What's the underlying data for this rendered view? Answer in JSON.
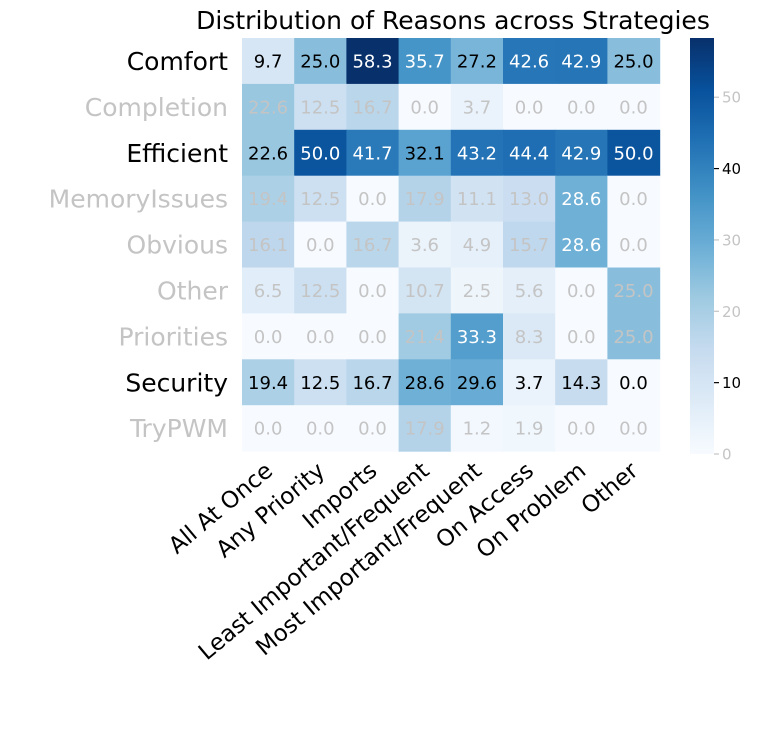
{
  "chart_data": {
    "type": "heatmap",
    "title": "Distribution of Reasons across Strategies",
    "xlabel": "",
    "ylabel": "",
    "x_categories": [
      "All At Once",
      "Any Priority",
      "Imports",
      "Least Important/Frequent",
      "Most Important/Frequent",
      "On Access",
      "On Problem",
      "Other"
    ],
    "y_categories": [
      "Comfort",
      "Completion",
      "Efficient",
      "MemoryIssues",
      "Obvious",
      "Other",
      "Priorities",
      "Security",
      "TryPWM"
    ],
    "highlighted_rows": [
      "Comfort",
      "Efficient",
      "Security"
    ],
    "values": [
      [
        9.7,
        25.0,
        58.3,
        35.7,
        27.2,
        42.6,
        42.9,
        25.0
      ],
      [
        22.6,
        12.5,
        16.7,
        0.0,
        3.7,
        0.0,
        0.0,
        0.0
      ],
      [
        22.6,
        50.0,
        41.7,
        32.1,
        43.2,
        44.4,
        42.9,
        50.0
      ],
      [
        19.4,
        12.5,
        0.0,
        17.9,
        11.1,
        13.0,
        28.6,
        0.0
      ],
      [
        16.1,
        0.0,
        16.7,
        3.6,
        4.9,
        15.7,
        28.6,
        0.0
      ],
      [
        6.5,
        12.5,
        0.0,
        10.7,
        2.5,
        5.6,
        0.0,
        25.0
      ],
      [
        0.0,
        0.0,
        0.0,
        21.4,
        33.3,
        8.3,
        0.0,
        25.0
      ],
      [
        19.4,
        12.5,
        16.7,
        28.6,
        29.6,
        3.7,
        14.3,
        0.0
      ],
      [
        0.0,
        0.0,
        0.0,
        17.9,
        1.2,
        1.9,
        0.0,
        0.0
      ]
    ],
    "colormap": "Blues",
    "colorbar": {
      "range": [
        0,
        58.3
      ],
      "ticks": [
        0,
        10,
        20,
        30,
        40,
        50
      ],
      "highlighted_ticks": [
        10,
        40
      ]
    },
    "colors": {
      "faded_text": "#c4c4c4",
      "highlight_text": "#000000"
    }
  }
}
